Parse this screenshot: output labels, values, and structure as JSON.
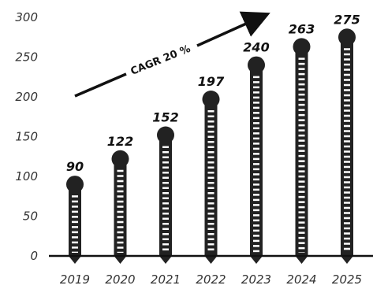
{
  "chart_data": {
    "type": "bar",
    "categories": [
      "2019",
      "2020",
      "2021",
      "2022",
      "2023",
      "2024",
      "2025"
    ],
    "values": [
      90,
      122,
      152,
      197,
      240,
      263,
      275
    ],
    "ylim": [
      0,
      300
    ],
    "yticks": [
      0,
      50,
      100,
      150,
      200,
      250,
      300
    ],
    "grid": false,
    "annotation": "CAGR 20 %",
    "colors": {
      "bar": "#222222",
      "stitch": "#ffffff",
      "text": "#111111"
    }
  }
}
